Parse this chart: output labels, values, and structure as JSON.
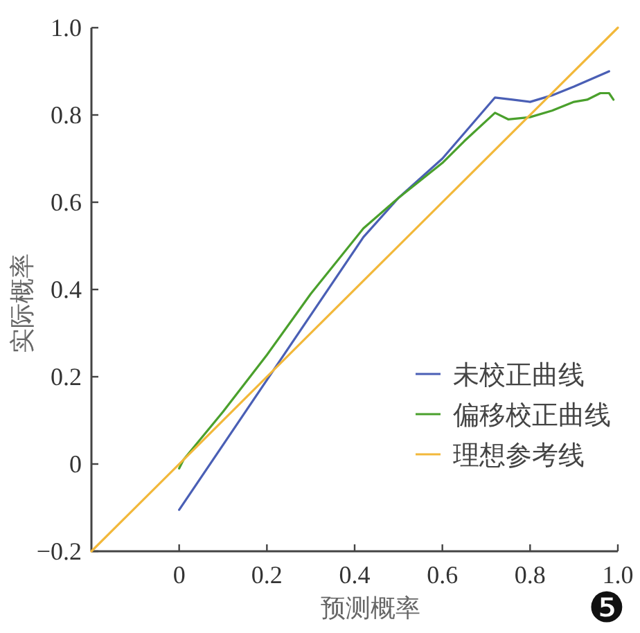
{
  "chart_data": {
    "type": "line",
    "xlabel": "预测概率",
    "ylabel": "实际概率",
    "xlim": [
      -0.2,
      1.0
    ],
    "ylim": [
      -0.2,
      1.0
    ],
    "xticks": [
      0,
      0.2,
      0.4,
      0.6,
      0.8,
      {
        "value": 1.0,
        "label": "1.0"
      }
    ],
    "yticks": [
      {
        "value": -0.2,
        "label": "−0.2"
      },
      0,
      0.2,
      0.4,
      0.6,
      0.8,
      {
        "value": 1.0,
        "label": "1.0"
      }
    ],
    "legend": "bottom right",
    "grid": false,
    "series": [
      {
        "name": "未校正曲线",
        "color": "#4a5fb5",
        "x": [
          0,
          0.42,
          0.5,
          0.6,
          0.72,
          0.76,
          0.8,
          0.85,
          0.9,
          0.98
        ],
        "values": [
          -0.105,
          0.52,
          0.61,
          0.7,
          0.84,
          0.835,
          0.83,
          0.845,
          0.865,
          0.9
        ]
      },
      {
        "name": "偏移校正曲线",
        "color": "#4aa02c",
        "x": [
          0,
          0.01,
          0.1,
          0.2,
          0.3,
          0.42,
          0.5,
          0.6,
          0.65,
          0.72,
          0.75,
          0.8,
          0.85,
          0.9,
          0.93,
          0.96,
          0.98,
          0.99
        ],
        "values": [
          -0.01,
          0.01,
          0.12,
          0.25,
          0.39,
          0.54,
          0.61,
          0.69,
          0.74,
          0.805,
          0.79,
          0.795,
          0.81,
          0.83,
          0.835,
          0.85,
          0.85,
          0.835
        ]
      },
      {
        "name": "理想参考线",
        "color": "#f2b83a",
        "x": [
          -0.2,
          1.0
        ],
        "values": [
          -0.2,
          1.0
        ]
      }
    ],
    "annotations": [
      "❺"
    ]
  }
}
